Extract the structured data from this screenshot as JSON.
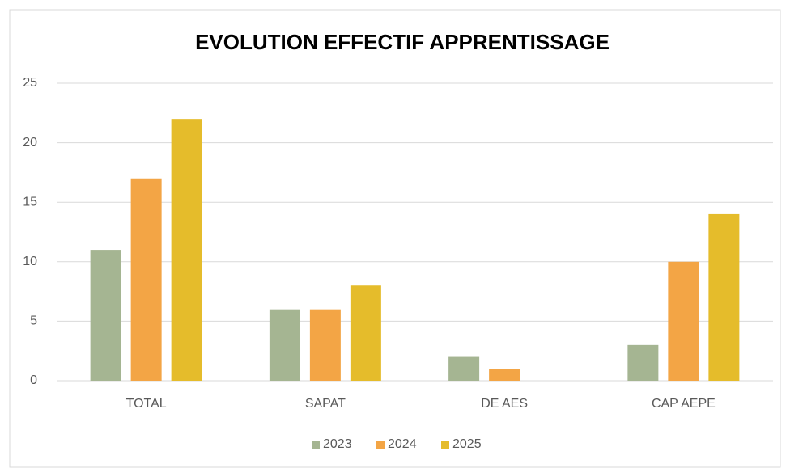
{
  "chart_data": {
    "type": "bar",
    "title": "EVOLUTION EFFECTIF APPRENTISSAGE",
    "categories": [
      "TOTAL",
      "SAPAT",
      "DE AES",
      "CAP AEPE"
    ],
    "series": [
      {
        "name": "2023",
        "color": "#a5b592",
        "values": [
          11,
          6,
          2,
          3
        ]
      },
      {
        "name": "2024",
        "color": "#f3a545",
        "values": [
          17,
          6,
          1,
          10
        ]
      },
      {
        "name": "2025",
        "color": "#e5bc2b",
        "values": [
          22,
          8,
          0,
          14
        ]
      }
    ],
    "ylim": [
      0,
      25
    ],
    "yticks": [
      0,
      5,
      10,
      15,
      20,
      25
    ],
    "grid": true,
    "legend": "bottom"
  }
}
